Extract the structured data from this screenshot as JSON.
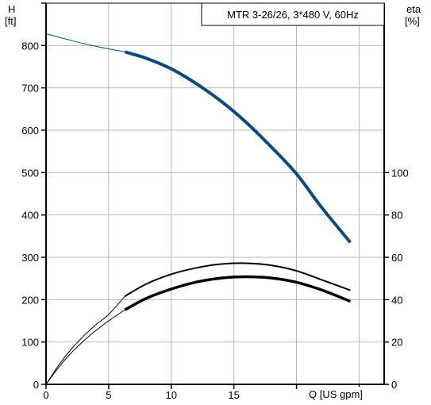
{
  "chart_data": {
    "type": "line",
    "title": "MTR 3-26/26, 3*480 V, 60Hz",
    "left_axis": {
      "label_line1": "H",
      "label_line2": "[ft]",
      "range": [
        0,
        900
      ],
      "ticks": [
        0,
        100,
        200,
        300,
        400,
        500,
        600,
        700,
        800
      ]
    },
    "right_axis": {
      "label_line1": "eta",
      "label_line2": "[%]",
      "range": [
        0,
        180
      ],
      "ticks": [
        0,
        20,
        40,
        60,
        80,
        100
      ]
    },
    "x_axis": {
      "label": "Q [US gpm]",
      "range": [
        0,
        27
      ],
      "ticks": [
        0,
        5,
        10,
        15
      ]
    },
    "grid": true,
    "colors": {
      "head": "#0b4a80",
      "efficiency": "#000000"
    },
    "series": [
      {
        "id": "head",
        "axis": "left",
        "thin": [
          [
            0,
            828
          ],
          [
            2,
            812
          ],
          [
            4,
            798
          ],
          [
            6.3,
            785
          ]
        ],
        "thick": [
          [
            6.3,
            785
          ],
          [
            8,
            770
          ],
          [
            10,
            745
          ],
          [
            12,
            710
          ],
          [
            14,
            668
          ],
          [
            16,
            618
          ],
          [
            18,
            560
          ],
          [
            20,
            497
          ],
          [
            22,
            418
          ],
          [
            24.3,
            335
          ]
        ]
      },
      {
        "id": "eta_upper",
        "axis": "right",
        "thin": [
          [
            0,
            0
          ],
          [
            1,
            9
          ],
          [
            2,
            16.5
          ],
          [
            3,
            22.8
          ],
          [
            4,
            28.3
          ],
          [
            5,
            33
          ],
          [
            6.3,
            41.6
          ]
        ],
        "thick": [
          [
            6.3,
            41.6
          ],
          [
            8,
            47.4
          ],
          [
            10,
            52
          ],
          [
            12,
            55
          ],
          [
            14,
            56.8
          ],
          [
            16,
            57.2
          ],
          [
            18,
            56.2
          ],
          [
            20,
            53.6
          ],
          [
            22,
            49.4
          ],
          [
            24.3,
            44.4
          ]
        ]
      },
      {
        "id": "eta_lower",
        "axis": "right",
        "thin": [
          [
            0,
            0
          ],
          [
            1,
            8
          ],
          [
            2,
            14.8
          ],
          [
            3,
            20.5
          ],
          [
            4,
            25.5
          ],
          [
            5,
            30
          ],
          [
            6.3,
            35.2
          ]
        ],
        "thick": [
          [
            6.3,
            35.2
          ],
          [
            8,
            40.6
          ],
          [
            10,
            45
          ],
          [
            12,
            48.3
          ],
          [
            14,
            50.2
          ],
          [
            16,
            50.8
          ],
          [
            18,
            50.2
          ],
          [
            20,
            48.2
          ],
          [
            22,
            44.6
          ],
          [
            24.3,
            39.2
          ]
        ]
      }
    ]
  }
}
